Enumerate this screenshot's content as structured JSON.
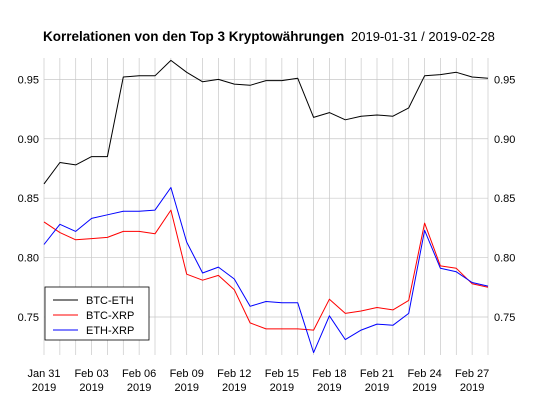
{
  "chart_data": {
    "type": "line",
    "title": "Korrelationen von den Top 3 Kryptowährungen",
    "date_range": "2019-01-31 / 2019-02-28",
    "xlabel": "",
    "ylabel": "",
    "ylim": [
      0.718,
      0.968
    ],
    "y_ticks": [
      "0.95",
      "0.90",
      "0.85",
      "0.80",
      "0.75"
    ],
    "y_tick_values": [
      0.95,
      0.9,
      0.85,
      0.8,
      0.75
    ],
    "x_tick_labels": [
      {
        "x": "2019-01-31",
        "line1": "Jan 31",
        "line2": "2019"
      },
      {
        "x": "2019-02-03",
        "line1": "Feb 03",
        "line2": "2019"
      },
      {
        "x": "2019-02-06",
        "line1": "Feb 06",
        "line2": "2019"
      },
      {
        "x": "2019-02-09",
        "line1": "Feb 09",
        "line2": "2019"
      },
      {
        "x": "2019-02-12",
        "line1": "Feb 12",
        "line2": "2019"
      },
      {
        "x": "2019-02-15",
        "line1": "Feb 15",
        "line2": "2019"
      },
      {
        "x": "2019-02-18",
        "line1": "Feb 18",
        "line2": "2019"
      },
      {
        "x": "2019-02-21",
        "line1": "Feb 21",
        "line2": "2019"
      },
      {
        "x": "2019-02-24",
        "line1": "Feb 24",
        "line2": "2019"
      },
      {
        "x": "2019-02-27",
        "line1": "Feb 27",
        "line2": "2019"
      }
    ],
    "grid": true,
    "legend_position": "bottom-left",
    "x": [
      "2019-01-31",
      "2019-02-01",
      "2019-02-02",
      "2019-02-03",
      "2019-02-04",
      "2019-02-05",
      "2019-02-06",
      "2019-02-07",
      "2019-02-08",
      "2019-02-09",
      "2019-02-10",
      "2019-02-11",
      "2019-02-12",
      "2019-02-13",
      "2019-02-14",
      "2019-02-15",
      "2019-02-16",
      "2019-02-17",
      "2019-02-18",
      "2019-02-19",
      "2019-02-20",
      "2019-02-21",
      "2019-02-22",
      "2019-02-23",
      "2019-02-24",
      "2019-02-25",
      "2019-02-26",
      "2019-02-27",
      "2019-02-28"
    ],
    "series": [
      {
        "name": "BTC-ETH",
        "color": "#000000",
        "values": [
          0.862,
          0.88,
          0.878,
          0.885,
          0.885,
          0.952,
          0.953,
          0.953,
          0.966,
          0.956,
          0.948,
          0.95,
          0.946,
          0.945,
          0.949,
          0.949,
          0.951,
          0.918,
          0.922,
          0.916,
          0.919,
          0.92,
          0.919,
          0.926,
          0.953,
          0.954,
          0.956,
          0.952,
          0.951
        ]
      },
      {
        "name": "BTC-XRP",
        "color": "#ff0000",
        "values": [
          0.83,
          0.821,
          0.815,
          0.816,
          0.817,
          0.822,
          0.822,
          0.82,
          0.84,
          0.786,
          0.781,
          0.785,
          0.773,
          0.745,
          0.74,
          0.74,
          0.74,
          0.739,
          0.765,
          0.753,
          0.755,
          0.758,
          0.756,
          0.764,
          0.829,
          0.793,
          0.791,
          0.778,
          0.775
        ]
      },
      {
        "name": "ETH-XRP",
        "color": "#0000ff",
        "values": [
          0.811,
          0.828,
          0.822,
          0.833,
          0.836,
          0.839,
          0.839,
          0.84,
          0.859,
          0.813,
          0.787,
          0.792,
          0.782,
          0.759,
          0.763,
          0.762,
          0.762,
          0.72,
          0.751,
          0.731,
          0.739,
          0.744,
          0.743,
          0.753,
          0.823,
          0.791,
          0.788,
          0.779,
          0.776
        ]
      }
    ]
  }
}
